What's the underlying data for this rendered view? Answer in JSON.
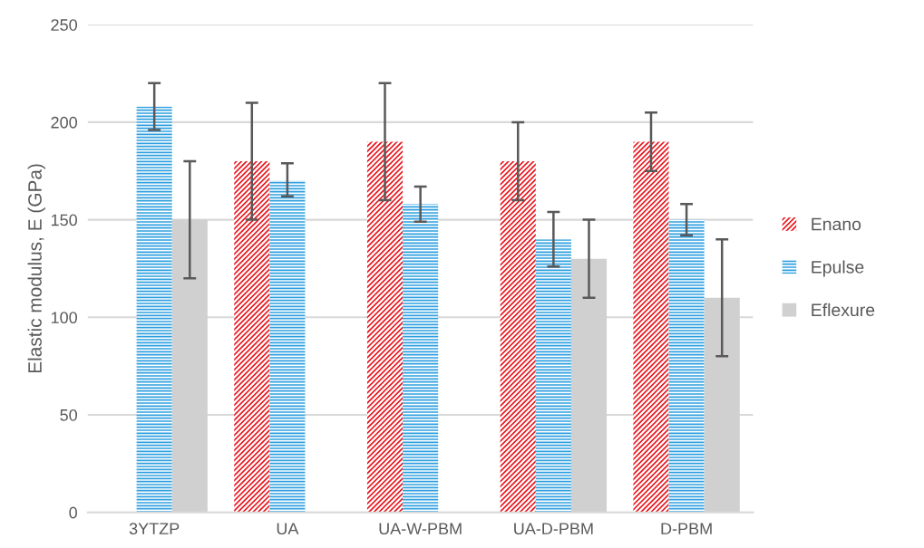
{
  "chart_data": {
    "type": "bar",
    "ylabel": "Elastic modulus, E (GPa)",
    "categories": [
      "3YTZP",
      "UA",
      "UA-W-PBM",
      "UA-D-PBM",
      "D-PBM"
    ],
    "series": [
      {
        "name": "Enano",
        "color": "#e8141c",
        "values": [
          null,
          180,
          190,
          180,
          190
        ],
        "errors": [
          null,
          [
            150,
            210
          ],
          [
            160,
            220
          ],
          [
            160,
            200
          ],
          [
            175,
            205
          ]
        ]
      },
      {
        "name": "Epulse",
        "color": "#2e9fe0",
        "values": [
          208,
          170,
          158,
          140,
          150
        ],
        "errors": [
          [
            196,
            220
          ],
          [
            162,
            179
          ],
          [
            149,
            167
          ],
          [
            126,
            154
          ],
          [
            142,
            158
          ]
        ]
      },
      {
        "name": "Eflexure",
        "color": "#d0d0d0",
        "values": [
          150,
          null,
          null,
          130,
          110
        ],
        "errors": [
          [
            120,
            180
          ],
          null,
          null,
          [
            110,
            150
          ],
          [
            80,
            140
          ]
        ]
      }
    ],
    "ylim": [
      0,
      250
    ],
    "yticks": [
      0,
      50,
      100,
      150,
      200,
      250
    ],
    "grid": "y",
    "legend": "right"
  }
}
